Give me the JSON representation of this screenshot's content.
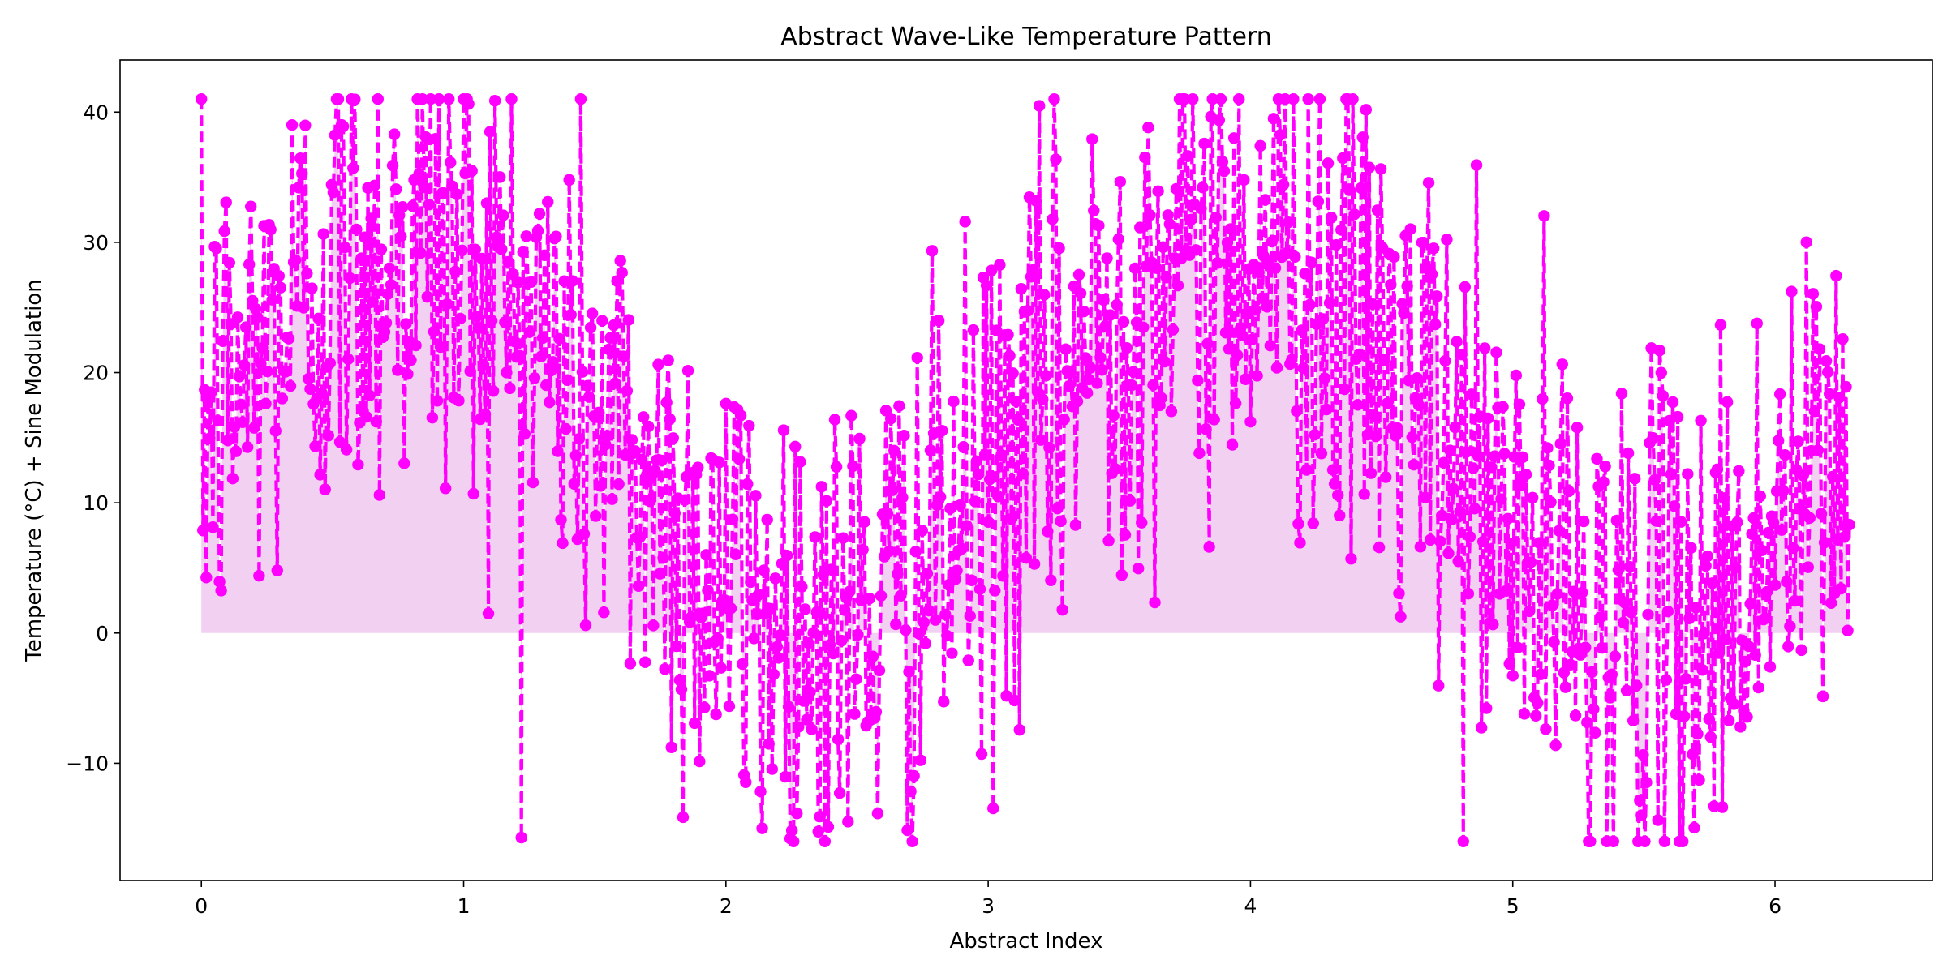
{
  "chart_data": {
    "type": "line",
    "title": "Abstract Wave-Like Temperature Pattern",
    "xlabel": "Abstract Index",
    "ylabel": "Temperature (°C) + Sine Modulation",
    "xlim": [
      -0.31,
      6.6
    ],
    "ylim": [
      -19,
      44
    ],
    "x_ticks": [
      0,
      1,
      2,
      3,
      4,
      5,
      6
    ],
    "y_ticks": [
      -10,
      0,
      10,
      20,
      30,
      40
    ],
    "x_tick_labels": [
      "0",
      "1",
      "2",
      "3",
      "4",
      "5",
      "6"
    ],
    "y_tick_labels": [
      "−10",
      "0",
      "10",
      "20",
      "30",
      "40"
    ],
    "grid": false,
    "legend": "none",
    "series": [
      {
        "color": "#ff00ff",
        "fill_color": "#e8a9e8",
        "line_style": "dashed",
        "marker": "circle",
        "x_range": [
          0,
          6.2832
        ],
        "num_points": 1000,
        "baseline_shape": "15 + 15*sin(2x)",
        "approx_value_range": [
          -16,
          41
        ]
      }
    ]
  }
}
